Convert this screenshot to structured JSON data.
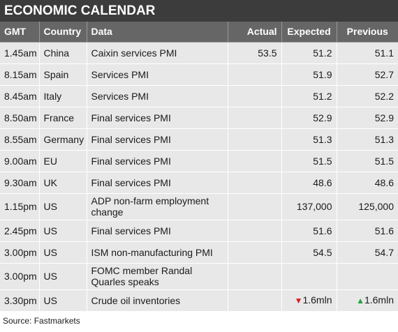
{
  "title": "ECONOMIC CALENDAR",
  "headers": {
    "gmt": "GMT",
    "country": "Country",
    "data": "Data",
    "actual": "Actual",
    "expected": "Expected",
    "previous": "Previous"
  },
  "rows": [
    {
      "gmt": "1.45am",
      "country": "China",
      "data": "Caixin services PMI",
      "actual": "53.5",
      "expected": "51.2",
      "previous": "51.1"
    },
    {
      "gmt": "8.15am",
      "country": "Spain",
      "data": "Services PMI",
      "actual": "",
      "expected": "51.9",
      "previous": "52.7"
    },
    {
      "gmt": "8.45am",
      "country": "Italy",
      "data": "Services PMI",
      "actual": "",
      "expected": "51.2",
      "previous": "52.2"
    },
    {
      "gmt": "8.50am",
      "country": "France",
      "data": "Final services PMI",
      "actual": "",
      "expected": "52.9",
      "previous": "52.9"
    },
    {
      "gmt": "8.55am",
      "country": "Germany",
      "data": "Final services PMI",
      "actual": "",
      "expected": "51.3",
      "previous": "51.3"
    },
    {
      "gmt": "9.00am",
      "country": "EU",
      "data": "Final services PMI",
      "actual": "",
      "expected": "51.5",
      "previous": "51.5"
    },
    {
      "gmt": "9.30am",
      "country": "UK",
      "data": "Final services PMI",
      "actual": "",
      "expected": "48.6",
      "previous": "48.6"
    },
    {
      "gmt": "1.15pm",
      "country": "US",
      "data": "ADP non-farm employment change",
      "actual": "",
      "expected": "137,000",
      "previous": "125,000"
    },
    {
      "gmt": "2.45pm",
      "country": "US",
      "data": "Final services PMI",
      "actual": "",
      "expected": "51.6",
      "previous": "51.6"
    },
    {
      "gmt": "3.00pm",
      "country": "US",
      "data": "ISM non-manufacturing PMI",
      "actual": "",
      "expected": "54.5",
      "previous": "54.7"
    },
    {
      "gmt": "3.00pm",
      "country": "US",
      "data": "FOMC member Randal Quarles speaks",
      "actual": "",
      "expected": "",
      "previous": ""
    },
    {
      "gmt": "3.30pm",
      "country": "US",
      "data": "Crude oil inventories",
      "actual": "",
      "expected": "1.6mln",
      "previous": "1.6mln",
      "expected_marker": "down-triangle-red",
      "previous_marker": "up-triangle-green"
    }
  ],
  "source": "Source: Fastmarkets",
  "colors": {
    "title_bg": "#3c3c3c",
    "header_bg": "#666666",
    "row_bg": "#e8e8e8",
    "down": "#d42020",
    "up": "#22a23a"
  }
}
